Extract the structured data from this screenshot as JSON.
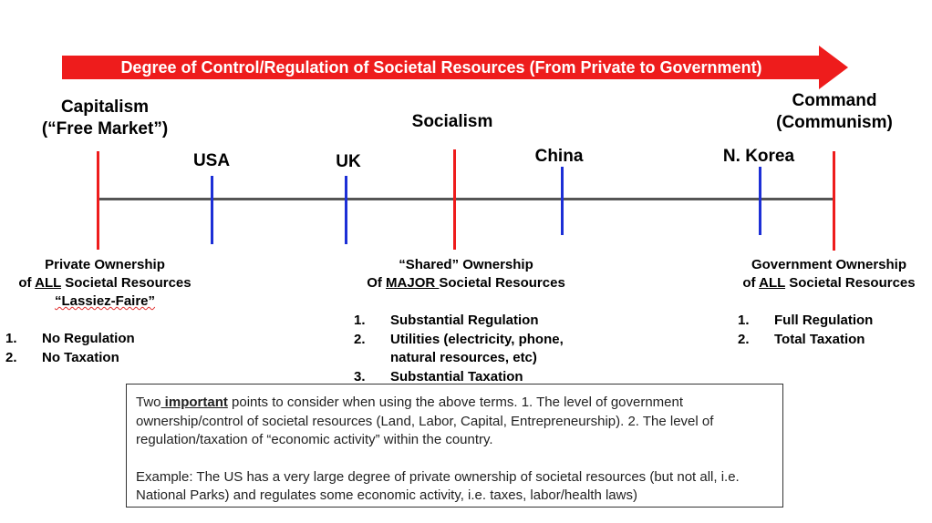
{
  "banner": {
    "text": "Degree of Control/Regulation of Societal Resources (From Private to Government)",
    "color": "#ee1c1c"
  },
  "systems": {
    "capitalism": {
      "line1": "Capitalism",
      "line2": "(“Free Market”)"
    },
    "socialism": {
      "line1": "Socialism"
    },
    "command": {
      "line1": "Command",
      "line2": "(Communism)"
    }
  },
  "countries": {
    "usa": "USA",
    "uk": "UK",
    "china": "China",
    "nkorea": "N. Korea"
  },
  "descriptions": {
    "private": {
      "line1": "Private Ownership",
      "line2_pre": "of ",
      "line2_u": "ALL",
      "line2_post": " Societal Resources",
      "line3": "“Lassiez-Faire”",
      "items": [
        {
          "num": "1.",
          "text": "No Regulation"
        },
        {
          "num": "2.",
          "text": "No Taxation"
        }
      ]
    },
    "shared": {
      "line1": "“Shared” Ownership",
      "line2_pre": "Of ",
      "line2_u": "MAJOR ",
      "line2_post": "Societal Resources",
      "items": [
        {
          "num": "1.",
          "text": "Substantial Regulation"
        },
        {
          "num": "2.",
          "text": "Utilities (electricity, phone, natural resources, etc)"
        },
        {
          "num": "3.",
          "text": "Substantial Taxation"
        }
      ]
    },
    "government": {
      "line1": "Government Ownership",
      "line2_pre": "of ",
      "line2_u": "ALL",
      "line2_post": " Societal Resources",
      "items": [
        {
          "num": "1.",
          "text": "Full Regulation"
        },
        {
          "num": "2.",
          "text": "Total Taxation"
        }
      ]
    }
  },
  "note": {
    "p1_pre": "Two",
    "p1_u": " important",
    "p1_post": " points to consider when using the above terms.  1. The level of government ownership/control of societal resources (Land, Labor, Capital, Entrepreneurship). 2. The level of regulation/taxation of “economic activity” within the country.",
    "p2": "Example: The US has a very large degree of private ownership of societal resources (but not all, i.e. National Parks) and regulates some economic activity, i.e. taxes, labor/health laws)"
  },
  "colors": {
    "axis": "#555555",
    "system_marker": "#ee1c1c",
    "country_marker": "#1c2fd6"
  }
}
